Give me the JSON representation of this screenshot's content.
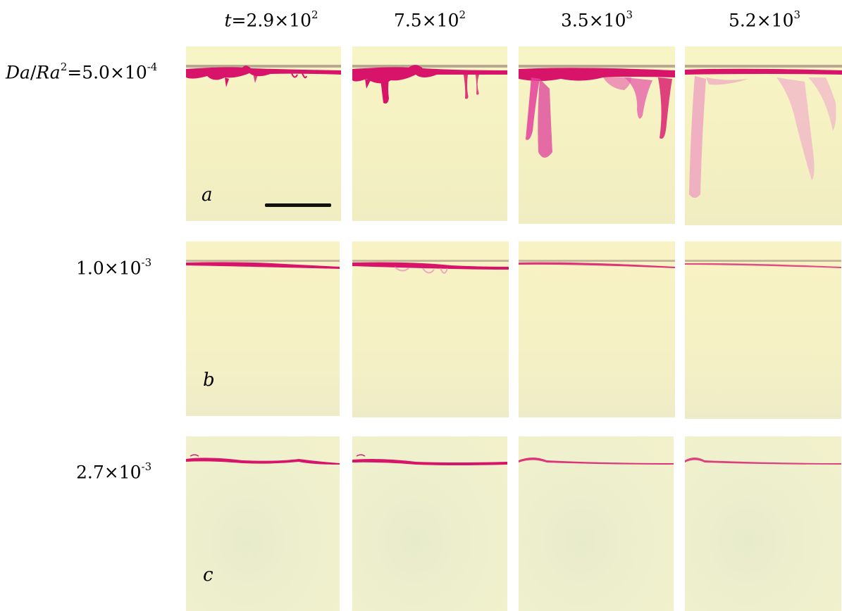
{
  "columns": [
    {
      "prefix": "t",
      "eq": "=",
      "mantissa": "2.9",
      "times": "×10",
      "exp": "2"
    },
    {
      "prefix": "",
      "eq": "",
      "mantissa": "7.5",
      "times": "×10",
      "exp": "2"
    },
    {
      "prefix": "",
      "eq": "",
      "mantissa": "3.5",
      "times": "×10",
      "exp": "3"
    },
    {
      "prefix": "",
      "eq": "",
      "mantissa": "5.2",
      "times": "×10",
      "exp": "3"
    }
  ],
  "rows": [
    {
      "var_a": "Da",
      "slash": "/",
      "var_b": "Ra",
      "var_b_exp": "2",
      "eq": "=",
      "mantissa": "5.0",
      "times": "×10",
      "exp": "-4",
      "letter": "a"
    },
    {
      "var_a": "",
      "slash": "",
      "var_b": "",
      "var_b_exp": "",
      "eq": "",
      "mantissa": "1.0",
      "times": "×10",
      "exp": "-3",
      "letter": "b"
    },
    {
      "var_a": "",
      "slash": "",
      "var_b": "",
      "var_b_exp": "",
      "eq": "",
      "mantissa": "2.7",
      "times": "×10",
      "exp": "-3",
      "letter": "c"
    }
  ],
  "colors": {
    "dye": "#d8146a",
    "fluid": "#f5f1c2",
    "scale_bar": "#111111"
  }
}
